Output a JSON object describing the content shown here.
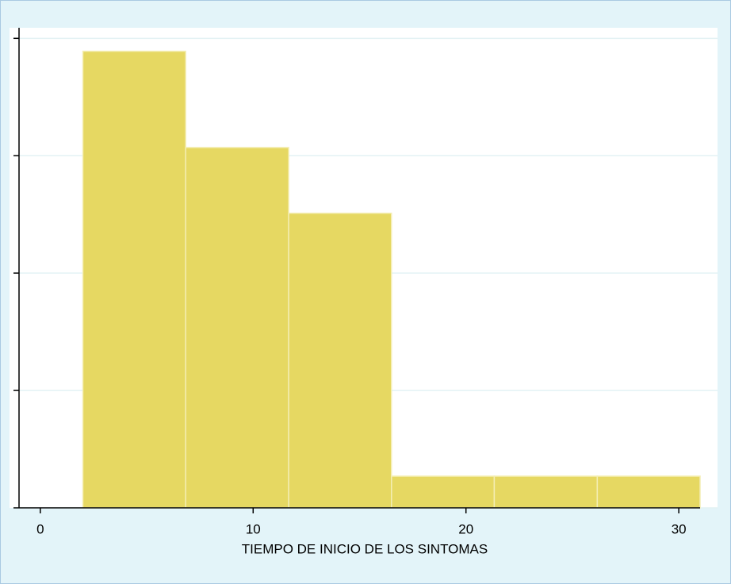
{
  "chart_data": {
    "type": "histogram",
    "x_label": "TIEMPO DE INICIO DE LOS SINTOMAS",
    "bins": [
      2,
      6.83,
      11.67,
      16.5,
      21.33,
      26.17,
      31
    ],
    "values": [
      3.89,
      3.07,
      2.51,
      0.27,
      0.27,
      0.27
    ],
    "color": "#e6d862",
    "xlim": [
      -1,
      31
    ],
    "xticks": [
      0,
      10,
      20,
      30
    ],
    "ylim": [
      0,
      4.09
    ],
    "yticks": [
      0,
      1,
      2,
      3,
      4
    ],
    "grid": true
  }
}
